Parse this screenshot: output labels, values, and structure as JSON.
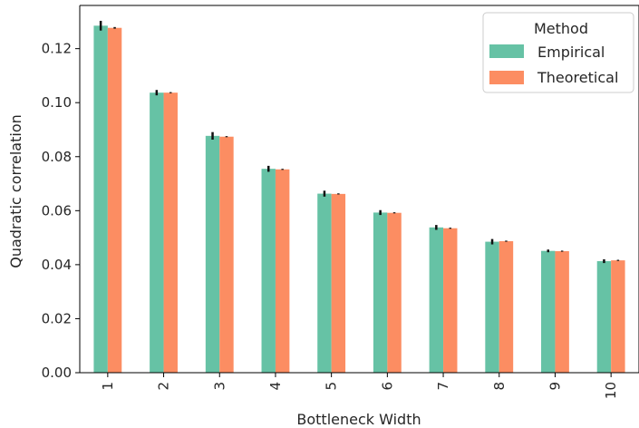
{
  "chart_data": {
    "type": "bar",
    "title": "",
    "xlabel": "Bottleneck Width",
    "ylabel": "Quadratic correlation",
    "categories": [
      "1",
      "2",
      "3",
      "4",
      "5",
      "6",
      "7",
      "8",
      "9",
      "10"
    ],
    "ylim": [
      0,
      0.136
    ],
    "yticks": [
      "0.00",
      "0.02",
      "0.04",
      "0.06",
      "0.08",
      "0.10",
      "0.12"
    ],
    "grid": false,
    "legend": {
      "title": "Method",
      "position": "top-right"
    },
    "series": [
      {
        "name": "Empirical",
        "color": "#66c2a5",
        "values": [
          0.1285,
          0.1037,
          0.0877,
          0.0755,
          0.0663,
          0.0593,
          0.0538,
          0.0485,
          0.0451,
          0.0413
        ],
        "errors": [
          0.0018,
          0.001,
          0.0014,
          0.0011,
          0.0011,
          0.0009,
          0.0009,
          0.001,
          0.0005,
          0.0007
        ]
      },
      {
        "name": "Theoretical",
        "color": "#fc8d62",
        "values": [
          0.1277,
          0.1037,
          0.0874,
          0.0753,
          0.0662,
          0.0592,
          0.0535,
          0.0487,
          0.045,
          0.0416
        ],
        "errors": [
          0.0003,
          0.0002,
          0.0002,
          0.0002,
          0.0002,
          0.0002,
          0.0002,
          0.0002,
          0.0002,
          0.0002
        ]
      }
    ]
  }
}
